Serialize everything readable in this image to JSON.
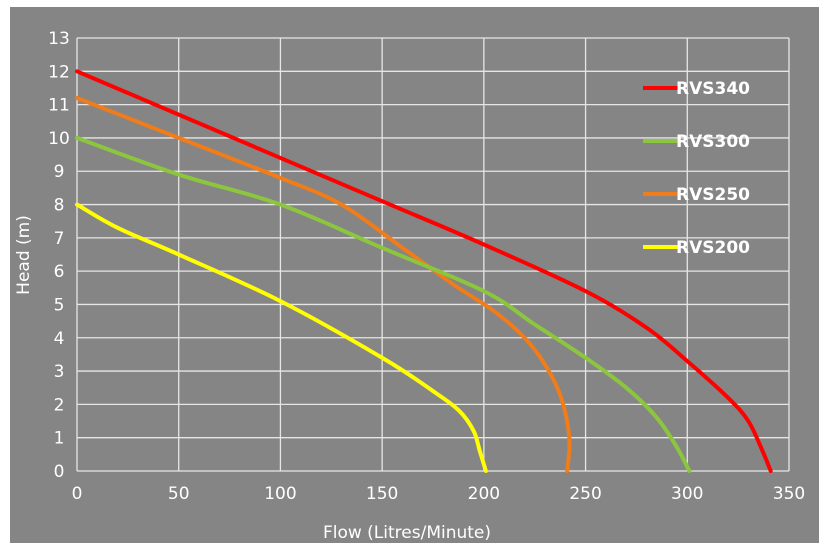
{
  "chart_data": {
    "type": "line",
    "title": "",
    "xlabel": "Flow (Litres/Minute)",
    "ylabel": "Head (m)",
    "xlim": [
      0,
      350
    ],
    "ylim": [
      0,
      13
    ],
    "xticks": [
      0,
      50,
      100,
      150,
      200,
      250,
      300,
      350
    ],
    "yticks": [
      0,
      1,
      2,
      3,
      4,
      5,
      6,
      7,
      8,
      9,
      10,
      11,
      12,
      13
    ],
    "grid": true,
    "legend_position": "top-right",
    "background_color": "#858585",
    "series": [
      {
        "name": "RVS340",
        "color": "#ff0000",
        "points": [
          [
            0,
            12
          ],
          [
            50,
            10.7
          ],
          [
            100,
            9.4
          ],
          [
            150,
            8.1
          ],
          [
            200,
            6.8
          ],
          [
            250,
            5.4
          ],
          [
            280,
            4.3
          ],
          [
            300,
            3.3
          ],
          [
            320,
            2.2
          ],
          [
            330,
            1.5
          ],
          [
            337,
            0.6
          ],
          [
            341,
            0
          ]
        ]
      },
      {
        "name": "RVS300",
        "color": "#8cc63f",
        "points": [
          [
            0,
            10
          ],
          [
            50,
            8.9
          ],
          [
            100,
            8.0
          ],
          [
            150,
            6.7
          ],
          [
            200,
            5.4
          ],
          [
            225,
            4.4
          ],
          [
            250,
            3.4
          ],
          [
            270,
            2.5
          ],
          [
            285,
            1.6
          ],
          [
            295,
            0.7
          ],
          [
            301,
            0
          ]
        ]
      },
      {
        "name": "RVS250",
        "color": "#f07c1a",
        "points": [
          [
            0,
            11.2
          ],
          [
            50,
            10.0
          ],
          [
            100,
            8.8
          ],
          [
            130,
            8.0
          ],
          [
            160,
            6.7
          ],
          [
            185,
            5.6
          ],
          [
            205,
            4.8
          ],
          [
            220,
            4.0
          ],
          [
            230,
            3.2
          ],
          [
            238,
            2.2
          ],
          [
            242,
            1.0
          ],
          [
            241,
            0
          ]
        ]
      },
      {
        "name": "RVS200",
        "color": "#ffff00",
        "points": [
          [
            0,
            8
          ],
          [
            20,
            7.3
          ],
          [
            50,
            6.5
          ],
          [
            100,
            5.1
          ],
          [
            150,
            3.4
          ],
          [
            175,
            2.4
          ],
          [
            188,
            1.8
          ],
          [
            195,
            1.2
          ],
          [
            198,
            0.6
          ],
          [
            201,
            0
          ]
        ]
      }
    ]
  }
}
